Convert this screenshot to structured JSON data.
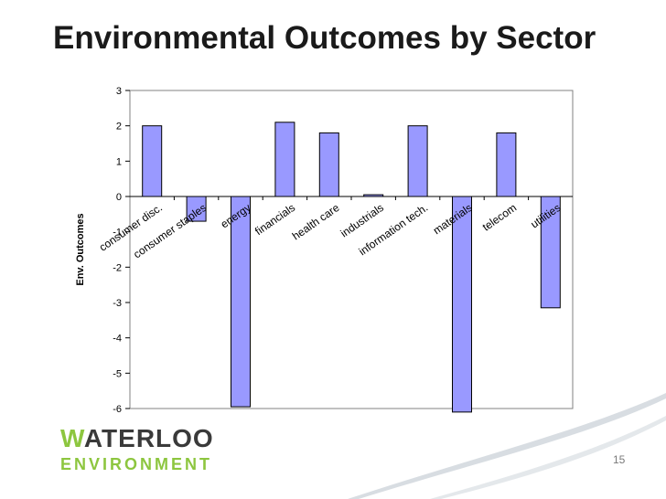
{
  "slide": {
    "title": "Environmental Outcomes by Sector",
    "page_number": "15"
  },
  "logo": {
    "first_letter": "W",
    "rest": "ATERLOO",
    "line2": "ENVIRONMENT",
    "colors": {
      "green": "#8dc63f",
      "dark": "#3a3a3a"
    }
  },
  "chart_data": {
    "type": "bar",
    "title": "",
    "xlabel": "",
    "ylabel": "Env. Outcomes",
    "ylim": [
      -6,
      3
    ],
    "yticks": [
      3,
      2,
      1,
      0,
      -1,
      -2,
      -3,
      -4,
      -5,
      -6
    ],
    "ytick_labels": [
      "3",
      "2",
      "1",
      "0",
      "-1",
      "-2",
      "-3",
      "-4",
      "-5",
      "-6"
    ],
    "categories": [
      "consumer disc.",
      "consumer staples",
      "energy",
      "financials",
      "health care",
      "industrials",
      "information tech.",
      "materials",
      "telecom",
      "utilities"
    ],
    "values": [
      2.0,
      -0.7,
      -5.95,
      2.1,
      1.8,
      0.05,
      2.0,
      -6.1,
      1.8,
      -3.15
    ],
    "grid": false,
    "legend": "none",
    "bar_color": "#9999ff",
    "bar_outline": "#000000"
  }
}
